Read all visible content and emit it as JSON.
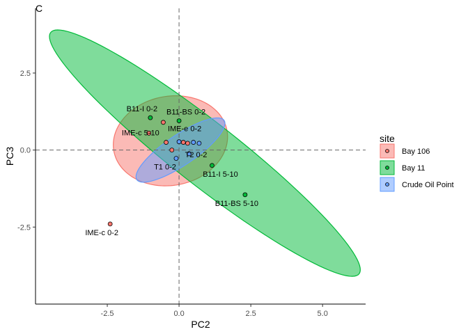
{
  "chart_data": {
    "type": "scatter",
    "panel_tag": "C",
    "title": "",
    "xlabel": "PC2",
    "ylabel": "PC3",
    "xlim": [
      -5.0,
      6.5
    ],
    "ylim": [
      -5.0,
      4.6
    ],
    "x_ticks": [
      {
        "value": -2.5,
        "label": "-2.5"
      },
      {
        "value": 0,
        "label": "0.0"
      },
      {
        "value": 2.5,
        "label": "2.5"
      },
      {
        "value": 5.0,
        "label": "5.0"
      }
    ],
    "y_ticks": [
      {
        "value": 2.5,
        "label": "2.5"
      },
      {
        "value": 0,
        "label": "0.0"
      },
      {
        "value": -2.5,
        "label": "-2.5"
      }
    ],
    "reference_lines": {
      "x": 0,
      "y": 0,
      "style": "dashed"
    },
    "grid": false,
    "legend": {
      "title": "site",
      "placement": "right"
    },
    "series": [
      {
        "name": "Bay 106",
        "color": "#F8766D",
        "points": [
          {
            "x": -2.4,
            "y": -2.4,
            "label": "IME-c 0-2"
          },
          {
            "x": -1.05,
            "y": 0.55,
            "label": "IME-c 5-10"
          },
          {
            "x": -0.55,
            "y": 0.9,
            "label": ""
          },
          {
            "x": -0.45,
            "y": 0.25,
            "label": ""
          },
          {
            "x": -0.25,
            "y": 0.0,
            "label": ""
          },
          {
            "x": 0.15,
            "y": 0.25,
            "label": ""
          },
          {
            "x": 0.3,
            "y": 0.22,
            "label": ""
          }
        ],
        "ellipse": {
          "center": [
            -0.3,
            0.3
          ],
          "rx": 2.0,
          "ry": 1.45,
          "angle_deg": 8
        }
      },
      {
        "name": "Bay 11",
        "color": "#00BA38",
        "points": [
          {
            "x": -1.0,
            "y": 1.05,
            "label": "B11-I 0-2"
          },
          {
            "x": 0.0,
            "y": 0.95,
            "label": "B11-BS 0-2"
          },
          {
            "x": 1.15,
            "y": -0.5,
            "label": "B11-I 5-10"
          },
          {
            "x": 2.3,
            "y": -1.45,
            "label": "B11-BS 5-10"
          }
        ],
        "ellipse": {
          "center": [
            0.9,
            -0.1
          ],
          "rx": 6.65,
          "ry": 1.05,
          "angle_deg": -36
        }
      },
      {
        "name": "Crude Oil Point",
        "color": "#619CFF",
        "points": [
          {
            "x": 0.0,
            "y": 0.27,
            "label": "IME-e 0-2"
          },
          {
            "x": 0.5,
            "y": 0.25,
            "label": ""
          },
          {
            "x": 0.7,
            "y": 0.22,
            "label": ""
          },
          {
            "x": 0.35,
            "y": -0.12,
            "label": "T2 0-2"
          },
          {
            "x": -0.1,
            "y": -0.27,
            "label": "T1 0-2"
          }
        ],
        "ellipse": {
          "center": [
            0.05,
            0.0
          ],
          "rx": 1.8,
          "ry": 0.5,
          "angle_deg": 32
        }
      }
    ]
  }
}
